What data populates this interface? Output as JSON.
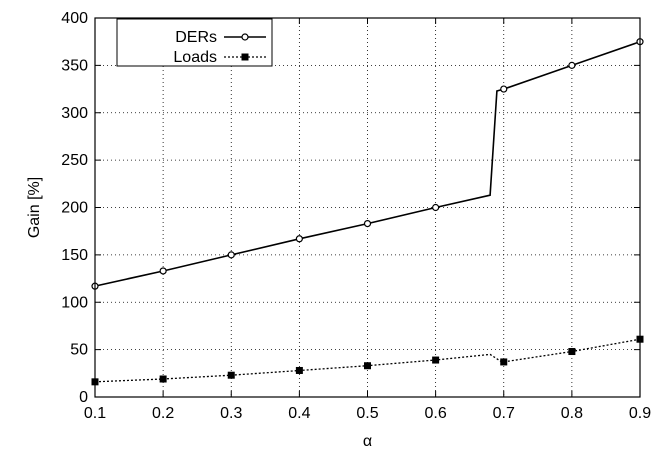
{
  "chart_data": {
    "type": "line",
    "title": "",
    "xlabel": "α",
    "ylabel": "Gain [%]",
    "xlim": [
      0.1,
      0.9
    ],
    "ylim": [
      0,
      400
    ],
    "x_ticks": [
      "0.1",
      "0.2",
      "0.3",
      "0.4",
      "0.5",
      "0.6",
      "0.7",
      "0.8",
      "0.9"
    ],
    "y_ticks": [
      "0",
      "50",
      "100",
      "150",
      "200",
      "250",
      "300",
      "350",
      "400"
    ],
    "grid": true,
    "legend": {
      "placement": "top-left",
      "boxed": true
    },
    "series": [
      {
        "name": "DERs",
        "line_style": "solid",
        "marker": "open-circle",
        "color": "#000000",
        "line": [
          [
            0.1,
            117
          ],
          [
            0.2,
            133
          ],
          [
            0.3,
            150
          ],
          [
            0.4,
            167
          ],
          [
            0.5,
            183
          ],
          [
            0.6,
            200
          ],
          [
            0.68,
            213
          ],
          [
            0.69,
            323
          ],
          [
            0.7,
            325
          ],
          [
            0.8,
            350
          ],
          [
            0.9,
            375
          ]
        ],
        "markers": [
          [
            0.1,
            117
          ],
          [
            0.2,
            133
          ],
          [
            0.3,
            150
          ],
          [
            0.4,
            167
          ],
          [
            0.5,
            183
          ],
          [
            0.6,
            200
          ],
          [
            0.7,
            325
          ],
          [
            0.8,
            350
          ],
          [
            0.9,
            375
          ]
        ]
      },
      {
        "name": "Loads",
        "line_style": "dotted",
        "marker": "filled-square",
        "color": "#000000",
        "line": [
          [
            0.1,
            16
          ],
          [
            0.2,
            19
          ],
          [
            0.3,
            23
          ],
          [
            0.4,
            28
          ],
          [
            0.5,
            33
          ],
          [
            0.6,
            39
          ],
          [
            0.68,
            45
          ],
          [
            0.695,
            38
          ],
          [
            0.7,
            37
          ],
          [
            0.8,
            48
          ],
          [
            0.9,
            61
          ]
        ],
        "markers": [
          [
            0.1,
            16
          ],
          [
            0.2,
            19
          ],
          [
            0.3,
            23
          ],
          [
            0.4,
            28
          ],
          [
            0.5,
            33
          ],
          [
            0.6,
            39
          ],
          [
            0.7,
            37
          ],
          [
            0.8,
            48
          ],
          [
            0.9,
            61
          ]
        ]
      }
    ]
  }
}
